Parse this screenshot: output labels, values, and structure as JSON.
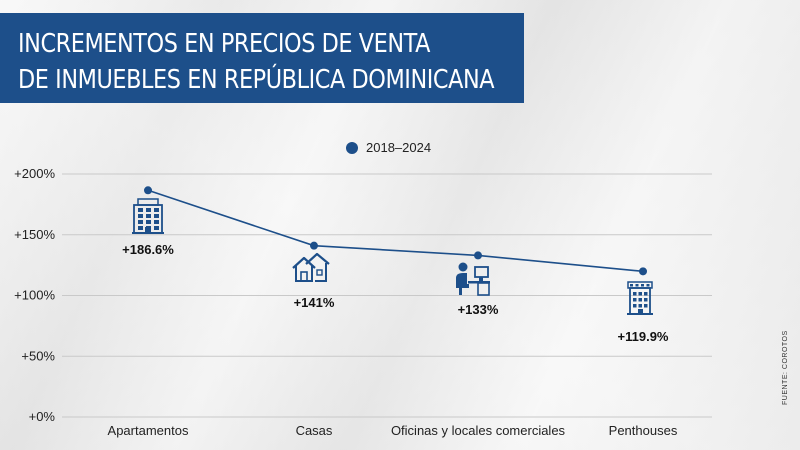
{
  "title_lines": [
    "INCREMENTOS EN PRECIOS DE VENTA",
    "DE INMUEBLES EN REPÚBLICA DOMINICANA"
  ],
  "legend": "2018–2024",
  "source": "FUENTE: COROTOS",
  "colors": {
    "accent": "#1d4f8a",
    "grid": "#c9c9c9",
    "text": "#111111"
  },
  "chart_data": {
    "type": "line",
    "categories": [
      "Apartamentos",
      "Casas",
      "Oficinas y locales comerciales",
      "Penthouses"
    ],
    "series": [
      {
        "name": "2018–2024",
        "values": [
          186.6,
          141,
          133,
          119.9
        ]
      }
    ],
    "data_labels": [
      "+186.6%",
      "+141%",
      "+133%",
      "+119.9%"
    ],
    "icons": [
      "apartment-building-icon",
      "houses-icon",
      "office-worker-icon",
      "penthouse-building-icon"
    ],
    "y_ticks": [
      0,
      50,
      100,
      150,
      200
    ],
    "y_tick_labels": [
      "+0%",
      "+50%",
      "+100%",
      "+150%",
      "+200%"
    ],
    "ylim": [
      0,
      200
    ],
    "grid": true,
    "legend_position": "top-center"
  }
}
